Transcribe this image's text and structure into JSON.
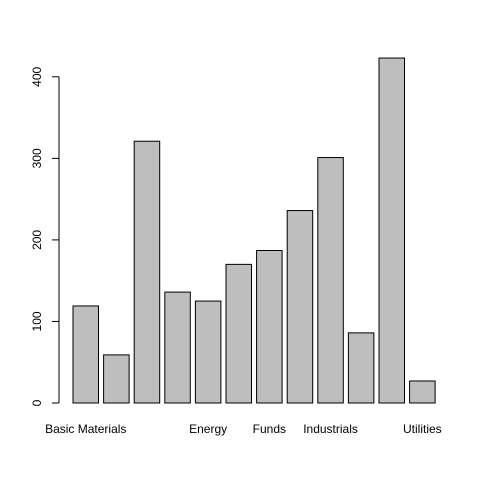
{
  "chart_data": {
    "type": "bar",
    "categories": [
      "Basic Materials",
      "",
      "",
      "",
      "Energy",
      "",
      "Funds",
      "",
      "Industrials",
      "",
      "",
      "Utilities"
    ],
    "values": [
      119,
      59,
      321,
      136,
      125,
      170,
      187,
      236,
      301,
      86,
      423,
      27
    ],
    "title": "",
    "xlabel": "",
    "ylabel": "",
    "ylim": [
      0,
      423
    ],
    "yticks": [
      0,
      100,
      200,
      300,
      400
    ],
    "bar_color": "#bebebe",
    "border_color": "#000000",
    "grid": false,
    "legend": "none"
  }
}
